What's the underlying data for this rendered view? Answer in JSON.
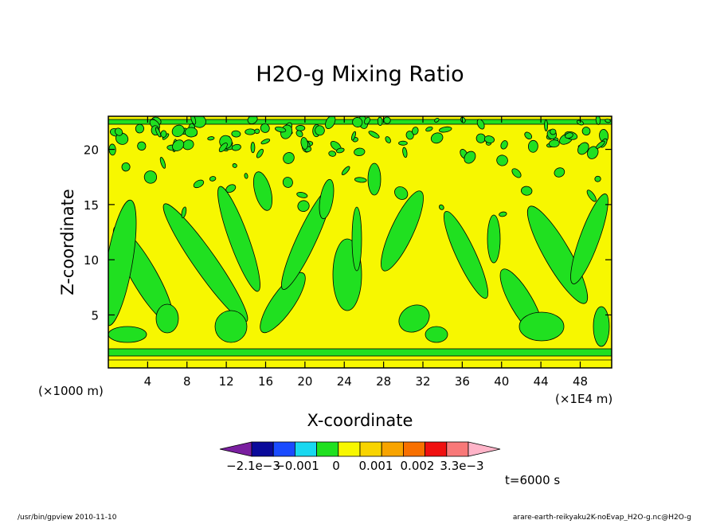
{
  "chart_data": {
    "type": "heatmap",
    "title": "H2O-g Mixing Ratio",
    "xlabel": "X-coordinate",
    "ylabel": "Z-coordinate",
    "x_unit_left": "(×1000 m)",
    "x_unit_right": "(×1E4 m)",
    "x_ticks": [
      "4",
      "8",
      "12",
      "16",
      "20",
      "24",
      "28",
      "32",
      "36",
      "40",
      "44",
      "48"
    ],
    "x_tick_values": [
      4,
      8,
      12,
      16,
      20,
      24,
      28,
      32,
      36,
      40,
      44,
      48
    ],
    "xlim": [
      0,
      51.2
    ],
    "y_ticks": [
      "5",
      "10",
      "15",
      "20"
    ],
    "y_tick_values": [
      5,
      10,
      15,
      20
    ],
    "ylim": [
      0.2,
      23
    ],
    "colorbar": {
      "labels": [
        "−2.1e−3",
        "−0.001",
        "0",
        "0.001",
        "0.002",
        "3.3e−3"
      ],
      "colors": [
        "#7a1fa0",
        "#0a0a9a",
        "#1a4bff",
        "#18d8f0",
        "#20e020",
        "#f7f700",
        "#f8d400",
        "#f8a400",
        "#f87000",
        "#f01010",
        "#f87878",
        "#ffb4c8"
      ]
    },
    "background_color": "#f7f700",
    "feature_color": "#20e020",
    "time_label": "t=6000 s"
  },
  "footer": {
    "left": "/usr/bin/gpview   2010-11-10",
    "right": "arare-earth-reikyaku2K-noEvap_H2O-g.nc@H2O-g"
  }
}
